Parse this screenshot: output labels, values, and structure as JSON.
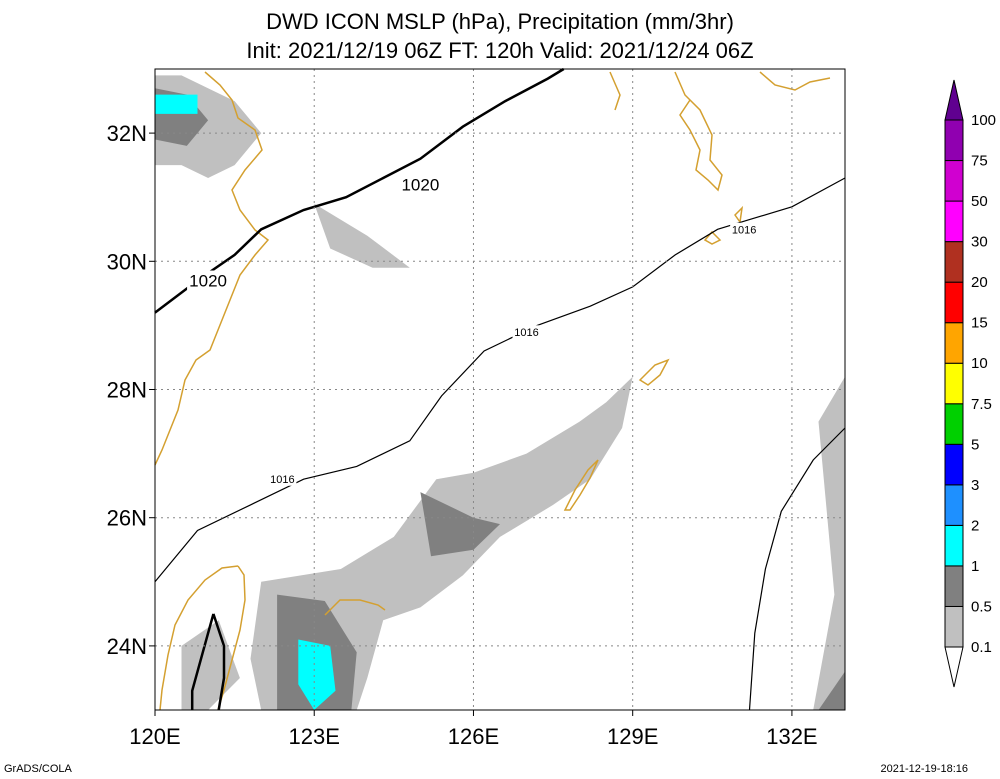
{
  "chart_data": {
    "type": "heatmap",
    "title_line1": "DWD ICON MSLP (hPa), Precipitation (mm/3hr)",
    "title_line2": "Init: 2021/12/19 06Z  FT: 120h  Valid: 2021/12/24 06Z",
    "x_axis": {
      "range": [
        120,
        133
      ],
      "ticks": [
        120,
        123,
        126,
        129,
        132
      ],
      "tick_labels": [
        "120E",
        "123E",
        "126E",
        "129E",
        "132E"
      ]
    },
    "y_axis": {
      "range": [
        23,
        33
      ],
      "ticks": [
        24,
        26,
        28,
        30,
        32
      ],
      "tick_labels": [
        "24N",
        "26N",
        "28N",
        "30N",
        "32N"
      ]
    },
    "grid": true,
    "colorbar": {
      "levels": [
        "0.1",
        "0.5",
        "1",
        "2",
        "3",
        "5",
        "7.5",
        "10",
        "15",
        "20",
        "30",
        "50",
        "75",
        "100"
      ],
      "colors": [
        "#c0c0c0",
        "#808080",
        "#00ffff",
        "#1e90ff",
        "#0000ff",
        "#00d000",
        "#ffff00",
        "#ffa500",
        "#ff0000",
        "#b03020",
        "#ff00ff",
        "#d000d0",
        "#9000b0",
        "#600090"
      ]
    },
    "isobars": [
      {
        "value": 1020,
        "label": "1020",
        "bold": true,
        "points": [
          [
            120.0,
            29.2
          ],
          [
            120.8,
            29.7
          ],
          [
            121.5,
            30.1
          ],
          [
            122.0,
            30.5
          ],
          [
            122.8,
            30.8
          ],
          [
            123.6,
            31.0
          ],
          [
            124.3,
            31.3
          ],
          [
            125.0,
            31.6
          ],
          [
            125.8,
            32.1
          ],
          [
            126.6,
            32.5
          ],
          [
            127.4,
            32.85
          ],
          [
            127.7,
            33.0
          ]
        ]
      },
      {
        "value": 1020,
        "label": "",
        "bold": true,
        "points": [
          [
            121.1,
            24.5
          ],
          [
            121.3,
            24.0
          ],
          [
            121.3,
            23.5
          ],
          [
            121.2,
            23.0
          ]
        ]
      },
      {
        "value": 1020,
        "label": "",
        "bold": true,
        "points": [
          [
            121.1,
            24.5
          ],
          [
            120.9,
            23.9
          ],
          [
            120.7,
            23.3
          ],
          [
            120.7,
            23.0
          ]
        ]
      },
      {
        "value": 1016,
        "label": "1016",
        "bold": false,
        "points": [
          [
            120.0,
            25.0
          ],
          [
            120.8,
            25.8
          ],
          [
            121.8,
            26.2
          ],
          [
            122.8,
            26.6
          ],
          [
            123.8,
            26.8
          ],
          [
            124.8,
            27.2
          ],
          [
            125.4,
            27.9
          ],
          [
            126.2,
            28.6
          ],
          [
            127.2,
            29.0
          ],
          [
            128.2,
            29.3
          ],
          [
            129.0,
            29.6
          ],
          [
            129.8,
            30.1
          ],
          [
            130.6,
            30.5
          ],
          [
            131.2,
            30.65
          ],
          [
            132.0,
            30.85
          ],
          [
            133.0,
            31.3
          ]
        ]
      },
      {
        "value": 1016,
        "label": "",
        "bold": false,
        "points": [
          [
            133.0,
            27.4
          ],
          [
            132.4,
            26.9
          ],
          [
            131.8,
            26.1
          ],
          [
            131.5,
            25.2
          ],
          [
            131.3,
            24.2
          ],
          [
            131.2,
            23.0
          ]
        ]
      }
    ],
    "isobar_labels": [
      {
        "text": "1020",
        "lon": 121.0,
        "lat": 29.7,
        "size": "big"
      },
      {
        "text": "1020",
        "lon": 125.0,
        "lat": 31.2,
        "size": "big"
      },
      {
        "text": "1016",
        "lon": 122.4,
        "lat": 26.6,
        "size": "small"
      },
      {
        "text": "1016",
        "lon": 127.0,
        "lat": 28.9,
        "size": "small"
      },
      {
        "text": "1016",
        "lon": 131.1,
        "lat": 30.5,
        "size": "small"
      }
    ],
    "precip_areas": [
      {
        "level": "0.1",
        "points": [
          [
            120.0,
            32.9
          ],
          [
            120.5,
            32.9
          ],
          [
            121.5,
            32.5
          ],
          [
            122.0,
            32.0
          ],
          [
            121.5,
            31.5
          ],
          [
            121.0,
            31.3
          ],
          [
            120.5,
            31.5
          ],
          [
            120.0,
            31.5
          ]
        ]
      },
      {
        "level": "0.5",
        "points": [
          [
            120.0,
            32.7
          ],
          [
            120.6,
            32.6
          ],
          [
            121.0,
            32.2
          ],
          [
            120.6,
            31.8
          ],
          [
            120.0,
            31.9
          ]
        ]
      },
      {
        "level": "1",
        "points": [
          [
            120.0,
            32.6
          ],
          [
            120.8,
            32.6
          ],
          [
            120.8,
            32.3
          ],
          [
            120.0,
            32.3
          ]
        ]
      },
      {
        "level": "0.1",
        "points": [
          [
            123.0,
            30.9
          ],
          [
            124.0,
            30.4
          ],
          [
            124.8,
            29.9
          ],
          [
            124.1,
            29.9
          ],
          [
            123.3,
            30.2
          ]
        ]
      },
      {
        "level": "0.1",
        "points": [
          [
            122.0,
            25.0
          ],
          [
            123.5,
            25.2
          ],
          [
            124.5,
            25.7
          ],
          [
            125.3,
            26.6
          ],
          [
            126.0,
            26.7
          ],
          [
            127.0,
            27.0
          ],
          [
            128.0,
            27.5
          ],
          [
            128.5,
            27.8
          ],
          [
            129.0,
            28.2
          ],
          [
            128.8,
            27.4
          ],
          [
            128.2,
            26.6
          ],
          [
            127.5,
            26.2
          ],
          [
            126.5,
            25.7
          ],
          [
            125.8,
            25.1
          ],
          [
            125.0,
            24.6
          ],
          [
            124.3,
            24.4
          ],
          [
            124.0,
            23.5
          ],
          [
            123.8,
            23.0
          ],
          [
            122.0,
            23.0
          ],
          [
            121.8,
            23.8
          ]
        ]
      },
      {
        "level": "0.5",
        "points": [
          [
            125.0,
            26.4
          ],
          [
            126.0,
            26.0
          ],
          [
            126.5,
            25.9
          ],
          [
            126.0,
            25.5
          ],
          [
            125.2,
            25.4
          ]
        ]
      },
      {
        "level": "0.5",
        "points": [
          [
            122.3,
            24.8
          ],
          [
            123.2,
            24.7
          ],
          [
            123.8,
            23.9
          ],
          [
            123.7,
            23.0
          ],
          [
            122.3,
            23.0
          ]
        ]
      },
      {
        "level": "1",
        "points": [
          [
            122.7,
            24.1
          ],
          [
            123.3,
            24.0
          ],
          [
            123.4,
            23.3
          ],
          [
            123.0,
            23.0
          ],
          [
            122.7,
            23.4
          ]
        ]
      },
      {
        "level": "0.1",
        "points": [
          [
            132.5,
            27.5
          ],
          [
            133.0,
            28.2
          ],
          [
            133.0,
            23.0
          ],
          [
            132.4,
            23.0
          ],
          [
            132.8,
            24.8
          ]
        ]
      },
      {
        "level": "0.5",
        "points": [
          [
            132.5,
            23.0
          ],
          [
            133.0,
            23.6
          ],
          [
            133.0,
            23.0
          ]
        ]
      },
      {
        "level": "0.1",
        "points": [
          [
            120.5,
            24.0
          ],
          [
            121.2,
            24.4
          ],
          [
            121.6,
            23.5
          ],
          [
            121.0,
            23.0
          ],
          [
            120.5,
            23.0
          ]
        ]
      }
    ]
  }
}
